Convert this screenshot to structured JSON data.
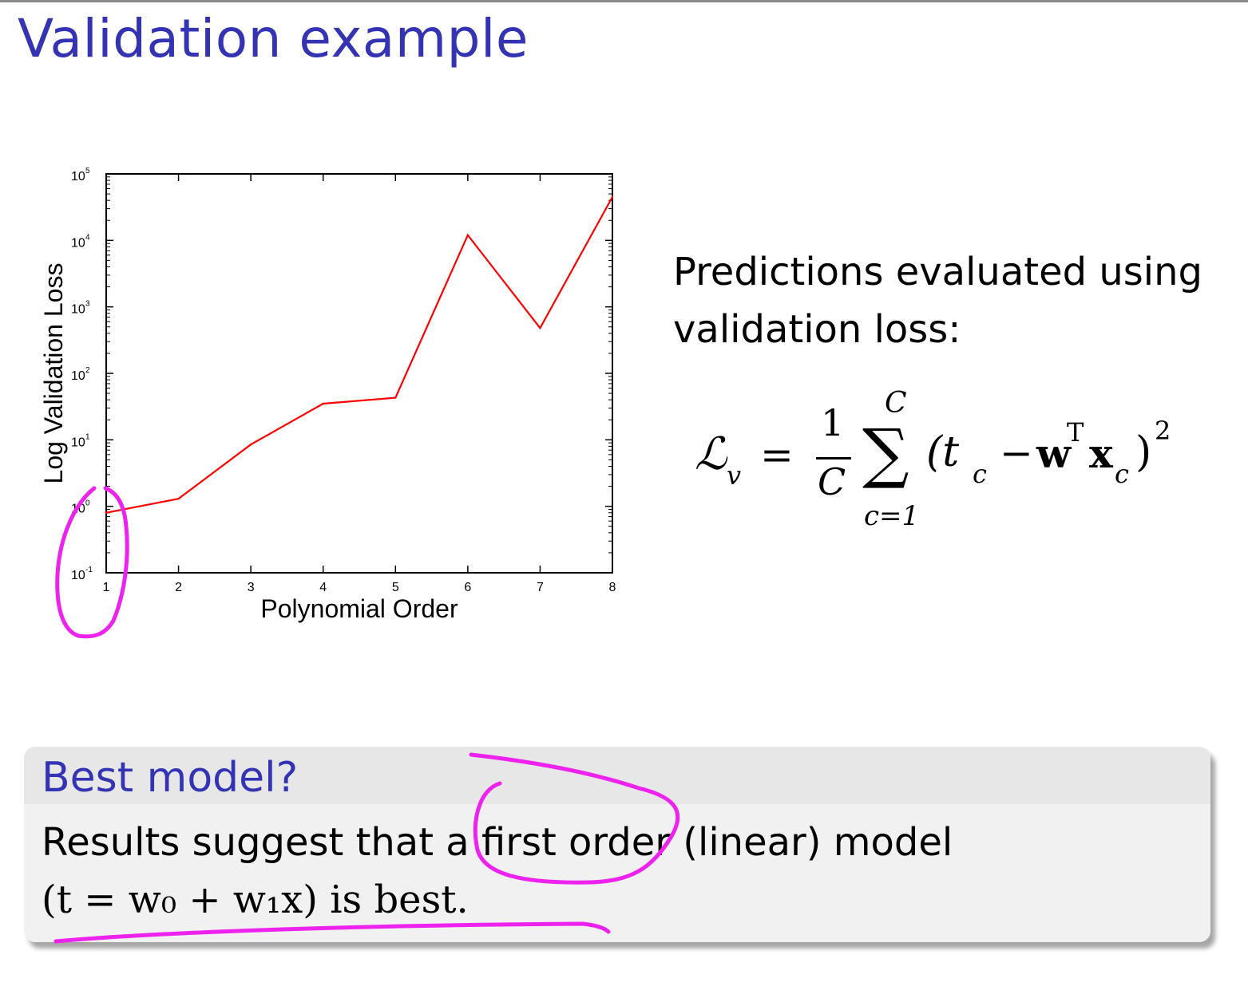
{
  "slide": {
    "title": "Validation example"
  },
  "description": {
    "line1": "Predictions evaluated using",
    "line2": "validation loss:"
  },
  "formula": {
    "lhs": "ℒ",
    "lhs_sub": "v",
    "equals": "=",
    "frac_num": "1",
    "frac_den": "C",
    "sum_symbol": "∑",
    "sum_upper": "C",
    "sum_lower": "c=1",
    "body": "(t",
    "body_sub": "c",
    "minus": "−",
    "w": "w",
    "w_sup": "T",
    "x": "x",
    "x_sub": "c",
    "close": ")",
    "power": "2"
  },
  "block": {
    "title": "Best model?",
    "line1": "Results suggest that a first order (linear) model",
    "line2": "(t = w₀ + w₁x) is best."
  },
  "annotation_color": "#ee22ee",
  "chart_data": {
    "type": "line",
    "x": [
      1,
      2,
      3,
      4,
      5,
      6,
      7,
      8
    ],
    "y": [
      0.8,
      1.3,
      8.5,
      35,
      43,
      12000,
      480,
      45000
    ],
    "xlabel": "Polynomial Order",
    "ylabel": "Log Validation Loss",
    "xlim": [
      1,
      8
    ],
    "ylim": [
      0.1,
      100000
    ],
    "yscale": "log",
    "x_ticks": [
      "1",
      "2",
      "3",
      "4",
      "5",
      "6",
      "7",
      "8"
    ],
    "y_tick_exponents": [
      "-1",
      "0",
      "1",
      "2",
      "3",
      "4",
      "5"
    ],
    "y_tick_base": "10",
    "line_color": "#ff0000",
    "grid": false
  }
}
